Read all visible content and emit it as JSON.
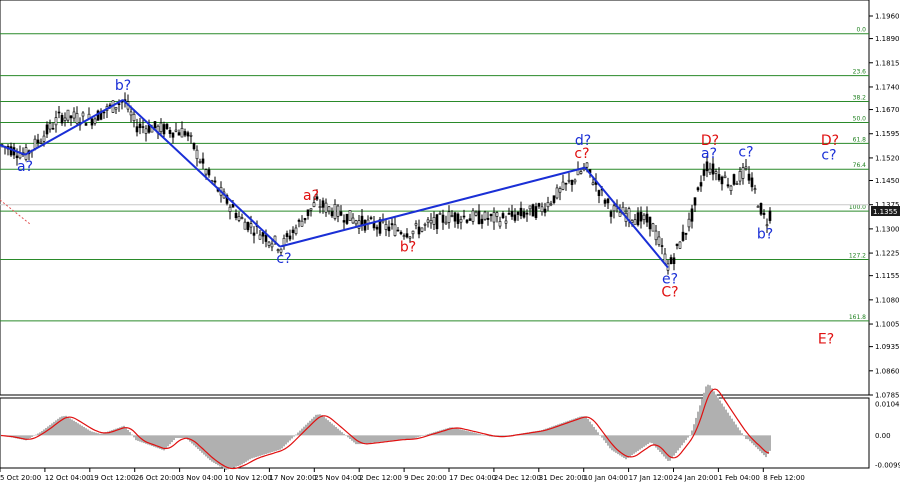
{
  "chart_data": {
    "type": "line",
    "instrument_panel": "candlestick price chart with Elliott wave markup",
    "price_axis": {
      "ticks": [
        "1.1960",
        "1.1890",
        "1.1815",
        "1.1740",
        "1.1670",
        "1.1595",
        "1.1520",
        "1.1450",
        "1.1375",
        "1.1300",
        "1.1225",
        "1.1155",
        "1.1080",
        "1.1005",
        "1.0935",
        "1.0860",
        "1.0785"
      ],
      "ylim": [
        1.0785,
        1.196
      ],
      "current_price": "1.1355"
    },
    "time_axis": {
      "ticks": [
        "5 Oct 20:00",
        "12 Oct 04:00",
        "19 Oct 12:00",
        "26 Oct 20:00",
        "3 Nov 04:00",
        "10 Nov 12:00",
        "17 Nov 20:00",
        "25 Nov 04:00",
        "2 Dec 12:00",
        "9 Dec 20:00",
        "17 Dec 04:00",
        "24 Dec 12:00",
        "31 Dec 20:00",
        "10 Jan 04:00",
        "17 Jan 12:00",
        "24 Jan 20:00",
        "1 Feb 04:00",
        "8 Feb 12:00"
      ]
    },
    "fibonacci_levels": [
      {
        "label": "0.0",
        "price": 1.1905
      },
      {
        "label": "23.6",
        "price": 1.1775
      },
      {
        "label": "38.2",
        "price": 1.1695
      },
      {
        "label": "50.0",
        "price": 1.163
      },
      {
        "label": "61.8",
        "price": 1.1565
      },
      {
        "label": "76.4",
        "price": 1.1485
      },
      {
        "label": "100.0",
        "price": 1.1355
      },
      {
        "label": "127.2",
        "price": 1.1205
      },
      {
        "label": "161.8",
        "price": 1.1015
      }
    ],
    "wave_line": {
      "series": [
        {
          "x": 0,
          "y": 1.156
        },
        {
          "x": 25,
          "y": 1.153
        },
        {
          "x": 123,
          "y": 1.17
        },
        {
          "x": 280,
          "y": 1.1245
        },
        {
          "x": 585,
          "y": 1.149
        },
        {
          "x": 668,
          "y": 1.118
        }
      ]
    },
    "wave_labels": [
      {
        "text": "a?",
        "color": "blue",
        "x": 25,
        "y": 1.148
      },
      {
        "text": "b?",
        "color": "blue",
        "x": 123,
        "y": 1.173
      },
      {
        "text": "c?",
        "color": "blue",
        "x": 284,
        "y": 1.1195
      },
      {
        "text": "a?",
        "color": "red",
        "x": 311,
        "y": 1.139
      },
      {
        "text": "b?",
        "color": "red",
        "x": 408,
        "y": 1.123
      },
      {
        "text": "d?",
        "color": "blue",
        "x": 583,
        "y": 1.156
      },
      {
        "text": "c?",
        "color": "red",
        "x": 582,
        "y": 1.152
      },
      {
        "text": "e?",
        "color": "blue",
        "x": 670,
        "y": 1.113
      },
      {
        "text": "C?",
        "color": "red",
        "x": 670,
        "y": 1.109
      },
      {
        "text": "D?",
        "color": "red",
        "x": 710,
        "y": 1.156
      },
      {
        "text": "a?",
        "color": "blue",
        "x": 709,
        "y": 1.152
      },
      {
        "text": "c?",
        "color": "blue",
        "x": 746,
        "y": 1.1525
      },
      {
        "text": "b?",
        "color": "blue",
        "x": 765,
        "y": 1.127
      },
      {
        "text": "D?",
        "color": "red",
        "x": 830,
        "y": 1.156
      },
      {
        "text": "c?",
        "color": "blue",
        "x": 829,
        "y": 1.1515
      },
      {
        "text": "E?",
        "color": "red",
        "x": 826,
        "y": 1.0945
      }
    ],
    "oscillator": {
      "ticks": [
        "0.01046",
        "0.00",
        "-0.0099"
      ],
      "ylim": [
        -0.0099,
        0.01046
      ]
    }
  }
}
